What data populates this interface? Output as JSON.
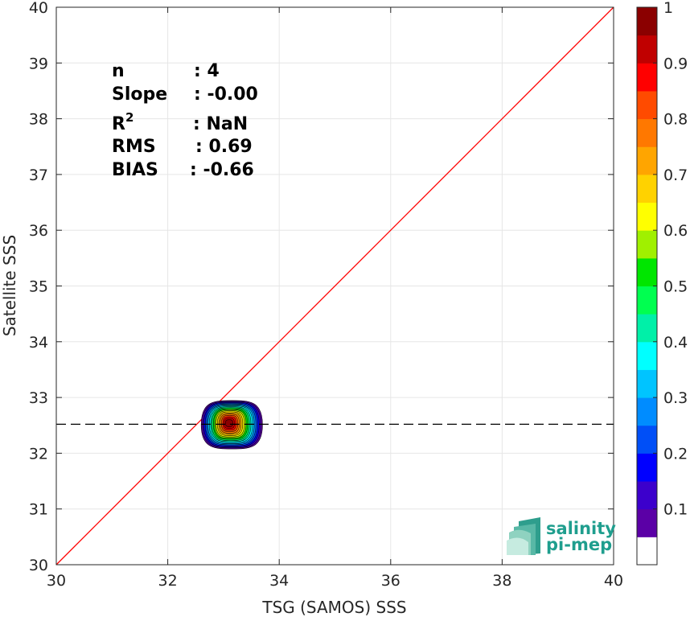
{
  "chart_data": {
    "type": "contour",
    "xlabel": "TSG (SAMOS) SSS",
    "ylabel": "Satellite SSS",
    "xlim": [
      30,
      40
    ],
    "ylim": [
      30,
      40
    ],
    "x_ticks": [
      30,
      32,
      34,
      36,
      38,
      40
    ],
    "y_ticks": [
      30,
      31,
      32,
      33,
      34,
      35,
      36,
      37,
      38,
      39,
      40
    ],
    "grid": true,
    "identity_line": {
      "from": [
        30,
        30
      ],
      "to": [
        40,
        40
      ],
      "color": "#ff0000"
    },
    "mean_line": {
      "y": 32.52,
      "style": "dashed",
      "color": "#000000"
    },
    "density_peak": {
      "x": 33.1,
      "y": 32.54,
      "x_range": [
        32.6,
        33.7
      ],
      "y_range": [
        32.1,
        32.95
      ]
    },
    "stats": [
      {
        "label": "n",
        "value": ": 4"
      },
      {
        "label": "Slope",
        "value": ": -0.00"
      },
      {
        "label": "R",
        "sup": "2",
        "value": ": NaN"
      },
      {
        "label": "RMS",
        "value": ": 0.69"
      },
      {
        "label": "BIAS",
        "value": ": -0.66"
      }
    ],
    "colorbar": {
      "ticks": [
        "0.1",
        "0.2",
        "0.3",
        "0.4",
        "0.5",
        "0.6",
        "0.7",
        "0.8",
        "0.9",
        "1"
      ],
      "colors": [
        "#ffffff",
        "#5b00a6",
        "#3c00cc",
        "#0000ff",
        "#004ff7",
        "#008cff",
        "#00c4ff",
        "#00ffff",
        "#00f0a8",
        "#00ff50",
        "#00e600",
        "#a0f000",
        "#ffff00",
        "#ffd200",
        "#ffa500",
        "#ff7800",
        "#ff4b00",
        "#ff0000",
        "#c00000",
        "#8b0000"
      ]
    }
  },
  "logo": {
    "line1": "salinity",
    "line2": "pi-mep"
  }
}
